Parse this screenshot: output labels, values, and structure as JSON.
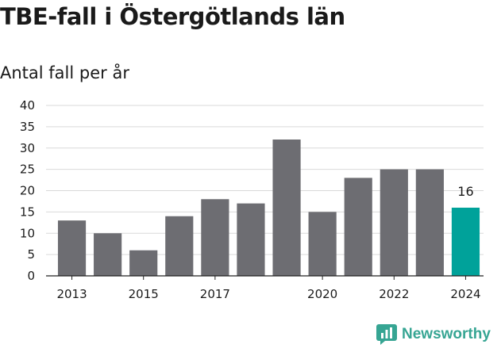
{
  "title": "TBE-fall i Östergötlands län",
  "subtitle": "Antal fall per år",
  "brand": {
    "name": "Newsworthy",
    "icon": "newsworthy-logo-icon"
  },
  "colors": {
    "bar": "#6d6d72",
    "highlight": "#00a29a",
    "grid": "#d9d9d9",
    "axis": "#222222",
    "brand": "#36a593"
  },
  "chart_data": {
    "type": "bar",
    "title": "TBE-fall i Östergötlands län",
    "subtitle": "Antal fall per år",
    "xlabel": "",
    "ylabel": "",
    "categories": [
      "2013",
      "2014",
      "2015",
      "2016",
      "2017",
      "2018",
      "2019",
      "2020",
      "2021",
      "2022",
      "2023",
      "2024"
    ],
    "values": [
      13,
      10,
      6,
      14,
      18,
      17,
      32,
      15,
      23,
      25,
      25,
      16
    ],
    "x_tick_labels": [
      "2013",
      "2015",
      "2017",
      "2020",
      "2022",
      "2024"
    ],
    "y_ticks": [
      0,
      5,
      10,
      15,
      20,
      25,
      30,
      35,
      40
    ],
    "ylim": [
      0,
      40
    ],
    "highlight_category": "2024",
    "data_labels": [
      {
        "category": "2024",
        "text": "16"
      }
    ],
    "grid": true,
    "legend": "none"
  }
}
